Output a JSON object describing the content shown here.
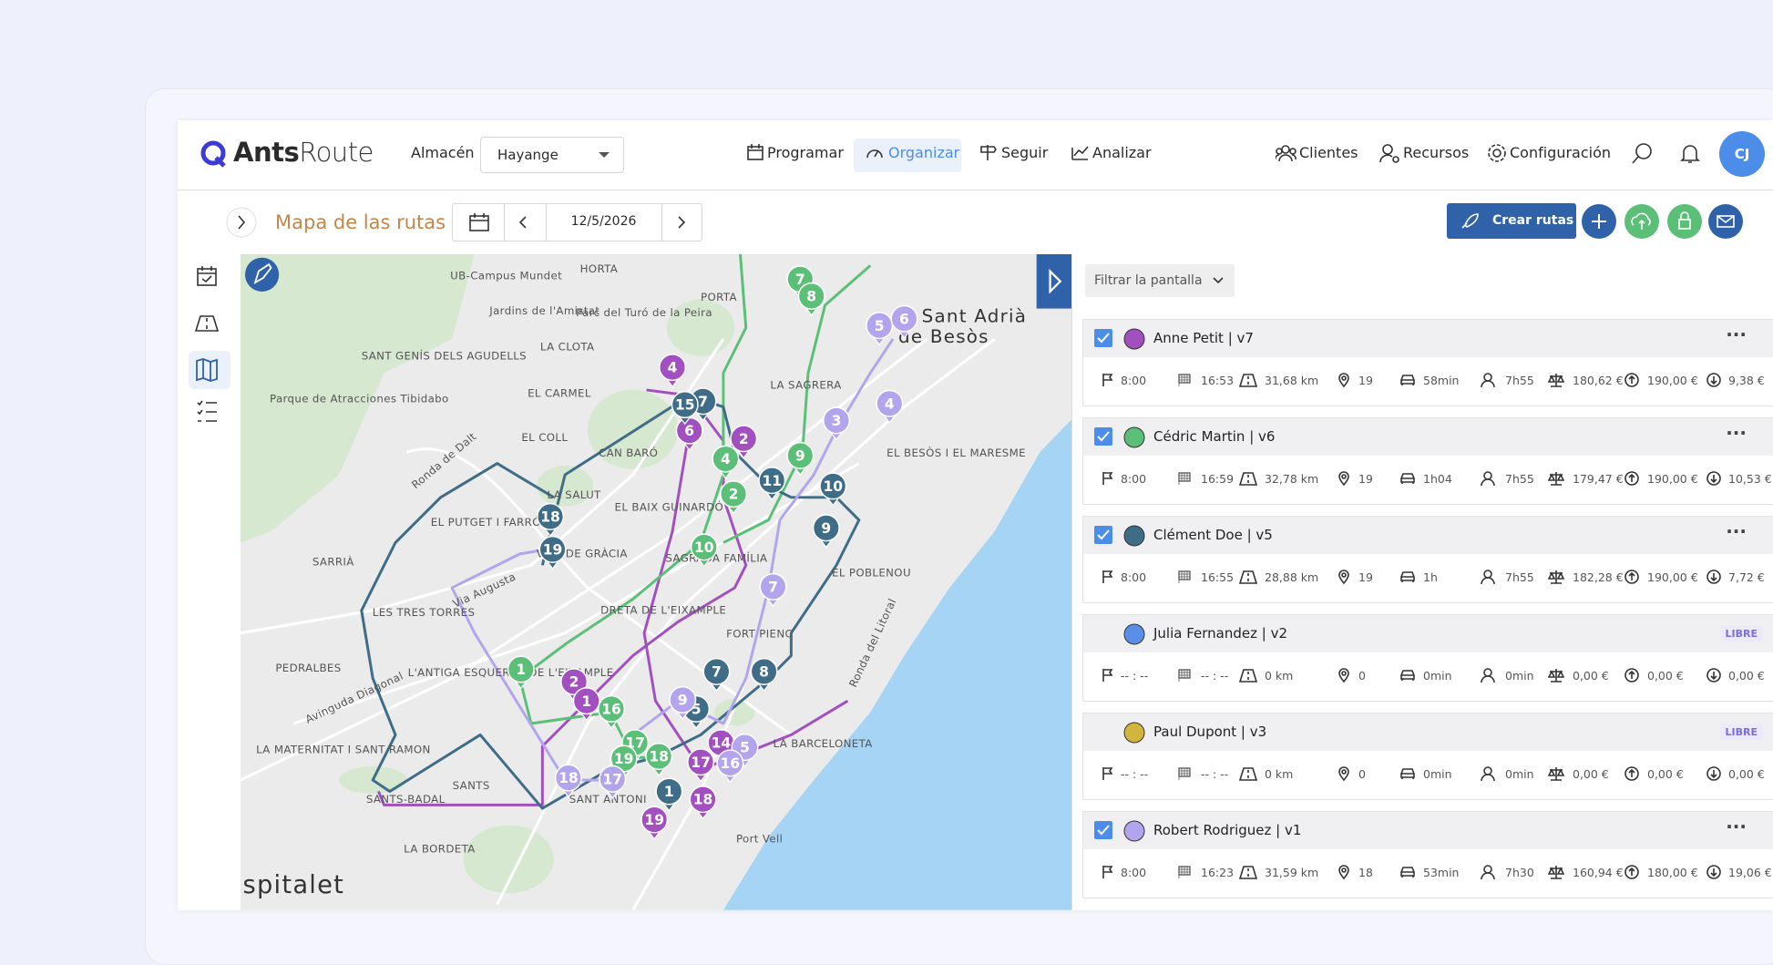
{
  "header": {
    "logo_bold": "Ants",
    "logo_light": "Route",
    "warehouse_label": "Almacén",
    "warehouse": "Hayange",
    "nav": [
      "Programar",
      "Organizar",
      "Seguir",
      "Analizar"
    ],
    "active_nav": 1,
    "menu": [
      "Clientes",
      "Recursos",
      "Configuración"
    ],
    "avatar": "CJ"
  },
  "toolbar": {
    "title": "Mapa de las rutas",
    "date": "12/5/2026",
    "button": "Crear rutas"
  },
  "panel": {
    "filter": "Filtrar la pantalla",
    "routes": [
      {
        "name": "Anne Petit | v7",
        "checked": true,
        "color": "#a24fc0",
        "stats": [
          "8:00",
          "16:53",
          "31,68 km",
          "19",
          "58min",
          "7h55",
          "180,62 €",
          "190,00 €",
          "9,38 €"
        ]
      },
      {
        "name": "Cédric Martin | v6",
        "checked": true,
        "color": "#5bbf78",
        "stats": [
          "8:00",
          "16:59",
          "32,78 km",
          "19",
          "1h04",
          "7h55",
          "179,47 €",
          "190,00 €",
          "10,53 €"
        ]
      },
      {
        "name": "Clément Doe | v5",
        "checked": true,
        "color": "#3f6c86",
        "stats": [
          "8:00",
          "16:55",
          "28,88 km",
          "19",
          "1h",
          "7h55",
          "182,28 €",
          "190,00 €",
          "7,72 €"
        ]
      },
      {
        "name": "Julia Fernandez | v2",
        "checked": false,
        "color": "#5b8ee6",
        "badge": "LIBRE",
        "stats": [
          "-- : --",
          "-- : --",
          "0 km",
          "0",
          "0min",
          "0min",
          "0,00 €",
          "0,00 €",
          "0,00 €"
        ]
      },
      {
        "name": "Paul Dupont | v3",
        "checked": false,
        "color": "#d4b53c",
        "badge": "LIBRE",
        "stats": [
          "-- : --",
          "-- : --",
          "0 km",
          "0",
          "0min",
          "0min",
          "0,00 €",
          "0,00 €",
          "0,00 €"
        ]
      },
      {
        "name": "Robert Rodriguez | v1",
        "checked": true,
        "color": "#b2a5ee",
        "stats": [
          "8:00",
          "16:23",
          "31,59 km",
          "18",
          "53min",
          "7h30",
          "160,94 €",
          "180,00 €",
          "19,06 €"
        ]
      }
    ]
  },
  "map": {
    "places": [
      "HORTA",
      "PORTA",
      "UB-Campus Mundet",
      "Jardins de l'Amistat",
      "Parc del Turó de la Peira",
      "Sant Adrià",
      "de Besòs",
      "SANT GENÍS DELS AGUDELLS",
      "LA CLOTA",
      "EL CARMEL",
      "Parque de Atracciones Tibidabo",
      "LA SAGRERA",
      "CAN BARÓ",
      "EL COLL",
      "EL BESÒS I EL MARESME",
      "LA SALUT",
      "EL BAIX GUINARDÓ",
      "EL PUTGET I FARRÓ",
      "SARRIÀ",
      "VILA DE GRÀCIA",
      "SAGRADA FAMÍLIA",
      "EL POBLENOU",
      "Via Augusta",
      "LES TRES TORRES",
      "DRETA DE L'EIXAMPLE",
      "FORT PIENC",
      "PEDRALBES",
      "L'ANTIGA ESQUERRA DE L'EIXAMPLE",
      "Avinguda Diagonal",
      "LA MATERNITAT I SANT RAMON",
      "LA BARCELONETA",
      "SANTS-BADAL",
      "SANTS",
      "SANT ANTONI",
      "LA BORDETA",
      "Port Vell",
      "Ronda de Dalt",
      "Ronda del Litoral",
      "spitalet"
    ],
    "markers": [
      {
        "label": "7",
        "color": "#5bbf78"
      },
      {
        "label": "8",
        "color": "#5bbf78"
      },
      {
        "label": "9",
        "color": "#5bbf78"
      },
      {
        "label": "4",
        "color": "#5bbf78"
      },
      {
        "label": "2",
        "color": "#5bbf78"
      },
      {
        "label": "10",
        "color": "#5bbf78"
      },
      {
        "label": "1",
        "color": "#5bbf78"
      },
      {
        "label": "16",
        "color": "#5bbf78"
      },
      {
        "label": "17",
        "color": "#5bbf78"
      },
      {
        "label": "19",
        "color": "#5bbf78"
      },
      {
        "label": "18",
        "color": "#5bbf78"
      },
      {
        "label": "4",
        "color": "#a24fc0"
      },
      {
        "label": "6",
        "color": "#a24fc0"
      },
      {
        "label": "2",
        "color": "#a24fc0"
      },
      {
        "label": "2",
        "color": "#a24fc0"
      },
      {
        "label": "1",
        "color": "#a24fc0"
      },
      {
        "label": "14",
        "color": "#a24fc0"
      },
      {
        "label": "17",
        "color": "#a24fc0"
      },
      {
        "label": "18",
        "color": "#a24fc0"
      },
      {
        "label": "19",
        "color": "#a24fc0"
      },
      {
        "label": "7",
        "color": "#3f6c86"
      },
      {
        "label": "15",
        "color": "#3f6c86"
      },
      {
        "label": "18",
        "color": "#3f6c86"
      },
      {
        "label": "19",
        "color": "#3f6c86"
      },
      {
        "label": "11",
        "color": "#3f6c86"
      },
      {
        "label": "10",
        "color": "#3f6c86"
      },
      {
        "label": "9",
        "color": "#3f6c86"
      },
      {
        "label": "7",
        "color": "#3f6c86"
      },
      {
        "label": "8",
        "color": "#3f6c86"
      },
      {
        "label": "5",
        "color": "#3f6c86"
      },
      {
        "label": "1",
        "color": "#3f6c86"
      },
      {
        "label": "5",
        "color": "#b2a5ee"
      },
      {
        "label": "6",
        "color": "#b2a5ee"
      },
      {
        "label": "3",
        "color": "#b2a5ee"
      },
      {
        "label": "4",
        "color": "#b2a5ee"
      },
      {
        "label": "7",
        "color": "#b2a5ee"
      },
      {
        "label": "9",
        "color": "#b2a5ee"
      },
      {
        "label": "5",
        "color": "#b2a5ee"
      },
      {
        "label": "16",
        "color": "#b2a5ee"
      },
      {
        "label": "17",
        "color": "#b2a5ee"
      },
      {
        "label": "18",
        "color": "#b2a5ee"
      }
    ]
  }
}
